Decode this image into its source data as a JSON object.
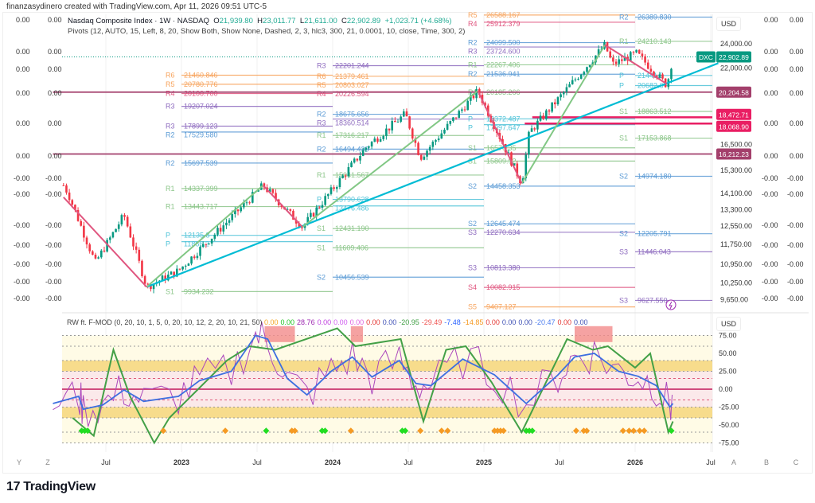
{
  "credit": "finanzasydinero created with TradingView.com, Apr 11, 2026 09:51 UTC-5",
  "brand": {
    "logo": "17",
    "name": "TradingView"
  },
  "main_legend": {
    "title": "Nasdaq Composite Index · 1W · NASDAQ",
    "o_label": "O",
    "o": "21,939.80",
    "h_label": "H",
    "h": "23,011.77",
    "l_label": "L",
    "l": "21,611.00",
    "c_label": "C",
    "c": "22,902.89",
    "change": "+1,023.71 (+4.68%)"
  },
  "pivot_legend": "Pivots (12, AUTO, 15, Left, 8, 20, Show Both, Show None, Dashed, 2, 3, hlc3, 300, 21, 0.0001, 10, close, Time, 300, 2)",
  "osc_legend": {
    "title": "RW ft. F-MOD (0, 20, 10, 1, 5, 0, 20, 10, 12, 2, 20, 10, 21, 50)",
    "values": [
      {
        "v": "0.00",
        "color": "#f5a623"
      },
      {
        "v": "0.00",
        "color": "#22c322"
      },
      {
        "v": "28.76",
        "color": "#9c27b0"
      },
      {
        "v": "0.00",
        "color": "#c040e0"
      },
      {
        "v": "0.00",
        "color": "#d05ef0"
      },
      {
        "v": "0.00",
        "color": "#e060e0"
      },
      {
        "v": "0.00",
        "color": "#e53935"
      },
      {
        "v": "0.00",
        "color": "#3f51b5"
      },
      {
        "v": "-20.95",
        "color": "#43a047"
      },
      {
        "v": "-29.49",
        "color": "#ef5350"
      },
      {
        "v": "-7.48",
        "color": "#2962ff"
      },
      {
        "v": "-14.85",
        "color": "#f59a23"
      },
      {
        "v": "0.00",
        "color": "#e53935"
      },
      {
        "v": "0.00",
        "color": "#3f51b5"
      },
      {
        "v": "0.00",
        "color": "#3f51b5"
      },
      {
        "v": "-20.47",
        "color": "#4f7ff0"
      },
      {
        "v": "0.00",
        "color": "#e53935"
      },
      {
        "v": "0.00",
        "color": "#3f51b5"
      }
    ]
  },
  "price_scale": {
    "currency": "USD",
    "ticks": [
      "24,000.00",
      "22,000.00",
      "16,500.00",
      "15,300.00",
      "14,100.00",
      "13,300.00",
      "12,550.00",
      "11,750.00",
      "10,950.00",
      "10,250.00",
      "9,650.00"
    ],
    "tick_values": [
      24000,
      22000,
      16500,
      15300,
      14100,
      13300,
      12550,
      11750,
      10950,
      10250,
      9650
    ],
    "symbol_badge": "DXC",
    "last_price": {
      "label": "22,902.89",
      "value": 22902.89,
      "color": "#089981"
    },
    "level_badges": [
      {
        "label": "20,204.58",
        "value": 20204.58,
        "color": "#a33f6b"
      },
      {
        "label": "18,472.71",
        "value": 18472.71,
        "color": "#e91e63"
      },
      {
        "label": "18,068.90",
        "value": 18068.9,
        "color": "#e91e63"
      },
      {
        "label": "16,212.23",
        "value": 16212.23,
        "color": "#a33f6b"
      }
    ]
  },
  "aux_scales": {
    "right_col1": [
      "0.00",
      "0.00",
      "0.00",
      "0.00",
      "0.00",
      "0.00",
      "-0.00",
      "-0.00",
      "-0.00",
      "-0.00",
      "-0.00",
      "-0.00",
      "-0.00"
    ],
    "right_col2": [
      "0.00",
      "0.00",
      "0.00",
      "0.00",
      "0.00",
      "0.00",
      "-0.00",
      "-0.00",
      "-0.00",
      "-0.00",
      "-0.00",
      "-0.00",
      "-0.00"
    ],
    "left_col1": [
      "0.00",
      "0.00",
      "0.00",
      "0.00",
      "0.00",
      "0.00",
      "-0.00",
      "-0.00",
      "-0.00",
      "-0.00",
      "-0.00",
      "-0.00",
      "-0.00"
    ],
    "left_col2": [
      "0.00",
      "0.00",
      "0.00",
      "0.00",
      "0.00",
      "0.00",
      "-0.00",
      "-0.00",
      "-0.00",
      "-0.00",
      "-0.00",
      "-0.00",
      "-0.00"
    ]
  },
  "osc_scale": {
    "currency": "USD",
    "ticks": [
      "75.00",
      "50.00",
      "25.00",
      "0.00",
      "-25.00",
      "-50.00",
      "-75.00"
    ],
    "tick_values": [
      75,
      50,
      25,
      0,
      -25,
      -50,
      -75
    ]
  },
  "time_axis": {
    "labels": [
      {
        "t": 2022.5,
        "label": "Jul"
      },
      {
        "t": 2023.0,
        "label": "2023"
      },
      {
        "t": 2023.5,
        "label": "Jul"
      },
      {
        "t": 2024.0,
        "label": "2024"
      },
      {
        "t": 2024.5,
        "label": "Jul"
      },
      {
        "t": 2025.0,
        "label": "2025"
      },
      {
        "t": 2025.5,
        "label": "Jul"
      },
      {
        "t": 2026.0,
        "label": "2026"
      },
      {
        "t": 2026.5,
        "label": "Jul"
      }
    ],
    "left_buttons": [
      "Y",
      "Z"
    ],
    "right_buttons": [
      "A",
      "B",
      "C"
    ]
  },
  "chart_data": {
    "type": "candlestick",
    "title": "Nasdaq Composite Index · 1W · NASDAQ",
    "scale": "log",
    "ylim": [
      9400,
      27000
    ],
    "xlim": [
      2022.15,
      2026.55
    ],
    "swings": [
      [
        2022.22,
        14500
      ],
      [
        2022.25,
        14100
      ],
      [
        2022.43,
        11000
      ],
      [
        2022.62,
        13050
      ],
      [
        2022.77,
        10100
      ],
      [
        2022.98,
        10700
      ],
      [
        2023.54,
        14500
      ],
      [
        2023.8,
        12500
      ],
      [
        2024.22,
        16600
      ],
      [
        2024.48,
        18700
      ],
      [
        2024.58,
        16000
      ],
      [
        2024.96,
        20300
      ],
      [
        2025.25,
        14600
      ],
      [
        2025.3,
        17500
      ],
      [
        2025.8,
        23900
      ],
      [
        2025.85,
        22300
      ],
      [
        2026.01,
        23200
      ],
      [
        2026.21,
        20700
      ],
      [
        2026.25,
        22902.89
      ]
    ],
    "trendline": [
      [
        2022.77,
        10100
      ],
      [
        2026.55,
        22400
      ]
    ],
    "zigzag_up": [
      [
        [
          2022.77,
          10100
        ],
        [
          2023.54,
          14500
        ]
      ],
      [
        [
          2023.8,
          12500
        ],
        [
          2024.96,
          20300
        ]
      ],
      [
        [
          2025.25,
          14600
        ],
        [
          2025.8,
          23900
        ]
      ]
    ],
    "zigzag_down": [
      [
        [
          2022.22,
          13900
        ],
        [
          2022.77,
          10100
        ]
      ],
      [
        [
          2023.54,
          14500
        ],
        [
          2023.8,
          12500
        ]
      ],
      [
        [
          2024.96,
          20300
        ],
        [
          2025.25,
          14600
        ]
      ],
      [
        [
          2025.8,
          23900
        ],
        [
          2026.21,
          20800
        ]
      ]
    ],
    "level_lines": [
      {
        "value": 20204.58,
        "from": 2022.15,
        "color": "#a33f6b"
      },
      {
        "value": 18472.71,
        "from": 2025.32,
        "color": "#e91e63"
      },
      {
        "value": 18068.9,
        "from": 2025.27,
        "color": "#e91e63"
      },
      {
        "value": 16212.23,
        "from": 2022.15,
        "color": "#a33f6b"
      }
    ],
    "pivot_segments": [
      {
        "from": 2023.0,
        "to": 2024.0,
        "levels": [
          {
            "k": "R6",
            "v": "21460.846"
          },
          {
            "k": "R5",
            "v": "20780.776"
          },
          {
            "k": "R4",
            "v": "20100.700"
          },
          {
            "k": "R3",
            "v": "19207.024"
          },
          {
            "k": "R3",
            "v": "17899.123"
          },
          {
            "k": "R2",
            "v": "17529.580"
          },
          {
            "k": "R2",
            "v": "15697.539"
          },
          {
            "k": "R1",
            "v": "14337.399"
          },
          {
            "k": "R1",
            "v": "13443.717"
          },
          {
            "k": "P",
            "v": "12135.8"
          },
          {
            "k": "P",
            "v": "11866.2"
          },
          {
            "k": "S1",
            "v": "9934.232"
          }
        ]
      },
      {
        "from": 2024.0,
        "to": 2025.0,
        "levels": [
          {
            "k": "R3",
            "v": "22201.244"
          },
          {
            "k": "R6",
            "v": "21379.461"
          },
          {
            "k": "R5",
            "v": "20803.027"
          },
          {
            "k": "R4",
            "v": "20226.594"
          },
          {
            "k": "R2",
            "v": "18675.656"
          },
          {
            "k": "R3",
            "v": "18360.514"
          },
          {
            "k": "R1",
            "v": "17316.217"
          },
          {
            "k": "R2",
            "v": "16494.433"
          },
          {
            "k": "R1",
            "v": "15041.567"
          },
          {
            "k": "P",
            "v": "13790.628"
          },
          {
            "k": "P",
            "v": "13476.486"
          },
          {
            "k": "S1",
            "v": "12431.190"
          },
          {
            "k": "S1",
            "v": "11609.406"
          },
          {
            "k": "S2",
            "v": "10456.539"
          }
        ]
      },
      {
        "from": 2025.0,
        "to": 2026.0,
        "levels": [
          {
            "k": "R5",
            "v": "26588.167"
          },
          {
            "k": "R4",
            "v": "25912.379"
          },
          {
            "k": "R2",
            "v": "24099.500"
          },
          {
            "k": "R3",
            "v": "23724.600"
          },
          {
            "k": "R1",
            "v": "22267.406"
          },
          {
            "k": "R2",
            "v": "21536.941"
          },
          {
            "k": "R1",
            "v": "20185.266"
          },
          {
            "k": "P",
            "v": "18372.487"
          },
          {
            "k": "P",
            "v": "17997.647"
          },
          {
            "k": "S1",
            "v": "16570.35"
          },
          {
            "k": "S1",
            "v": "15809.92"
          },
          {
            "k": "S2",
            "v": "14458.353"
          },
          {
            "k": "S2",
            "v": "12645.474"
          },
          {
            "k": "S3",
            "v": "12270.634"
          },
          {
            "k": "S3",
            "v": "10813.380"
          },
          {
            "k": "S4",
            "v": "10082.915"
          },
          {
            "k": "S5",
            "v": "9407.127"
          }
        ]
      },
      {
        "from": 2026.0,
        "to": 2026.52,
        "levels": [
          {
            "k": "R2",
            "v": "26389.830"
          },
          {
            "k": "R1",
            "v": "24210.143"
          },
          {
            "k": "P",
            "v": "21441.5"
          },
          {
            "k": "P",
            "v": "20682.6"
          },
          {
            "k": "S1",
            "v": "18863.512"
          },
          {
            "k": "S1",
            "v": "17153.868"
          },
          {
            "k": "S2",
            "v": "14974.180"
          },
          {
            "k": "S2",
            "v": "12205.791"
          },
          {
            "k": "S3",
            "v": "11446.043"
          },
          {
            "k": "S3",
            "v": "9627.550"
          }
        ]
      }
    ],
    "pivot_colors": {
      "R6": "#f7a35c",
      "R5": "#f7a35c",
      "R4": "#e0557f",
      "R3": "#8e6bbf",
      "R2": "#5b9bd5",
      "R1": "#8cc68a",
      "P": "#4fc3d8",
      "S1": "#8cc68a",
      "S2": "#5b9bd5",
      "S3": "#8e6bbf",
      "S4": "#e0557f",
      "S5": "#f7a35c"
    },
    "oscillator": {
      "ylim": [
        -80,
        90
      ],
      "bands": {
        "outer": [
          -75,
          75
        ],
        "upper_zone": [
          25,
          40
        ],
        "lower_zone": [
          -40,
          -25
        ]
      },
      "main_line": [
        [
          2022.15,
          -20
        ],
        [
          2022.32,
          -10
        ],
        [
          2022.35,
          -28
        ],
        [
          2022.48,
          -22
        ],
        [
          2022.62,
          -1
        ],
        [
          2022.75,
          -17
        ],
        [
          2022.98,
          -10
        ],
        [
          2023.12,
          12
        ],
        [
          2023.33,
          25
        ],
        [
          2023.49,
          75
        ],
        [
          2023.57,
          70
        ],
        [
          2023.7,
          15
        ],
        [
          2023.83,
          -8
        ],
        [
          2023.99,
          25
        ],
        [
          2024.13,
          45
        ],
        [
          2024.26,
          17
        ],
        [
          2024.44,
          40
        ],
        [
          2024.55,
          8
        ],
        [
          2024.65,
          5
        ],
        [
          2024.86,
          42
        ],
        [
          2025.07,
          20
        ],
        [
          2025.28,
          -20
        ],
        [
          2025.49,
          20
        ],
        [
          2025.6,
          45
        ],
        [
          2025.73,
          50
        ],
        [
          2025.89,
          25
        ],
        [
          2026.02,
          18
        ],
        [
          2026.14,
          5
        ],
        [
          2026.23,
          -25
        ],
        [
          2026.25,
          -20
        ]
      ],
      "green_line": [
        [
          2022.28,
          -40
        ],
        [
          2022.42,
          -65
        ],
        [
          2022.55,
          55
        ],
        [
          2022.66,
          -10
        ],
        [
          2022.82,
          -75
        ],
        [
          2022.92,
          -40
        ],
        [
          2023.3,
          40
        ],
        [
          2023.45,
          60
        ],
        [
          2023.62,
          55
        ],
        [
          2024.03,
          85
        ],
        [
          2024.15,
          60
        ],
        [
          2024.45,
          70
        ],
        [
          2024.6,
          -45
        ],
        [
          2024.75,
          55
        ],
        [
          2024.88,
          60
        ],
        [
          2025.05,
          10
        ],
        [
          2025.25,
          -60
        ],
        [
          2025.55,
          70
        ],
        [
          2025.72,
          55
        ],
        [
          2025.82,
          60
        ],
        [
          2026.0,
          30
        ],
        [
          2026.1,
          50
        ],
        [
          2026.22,
          -60
        ],
        [
          2026.25,
          -45
        ]
      ],
      "orange_markers": [
        2022.88,
        2023.29,
        2023.73,
        2023.75,
        2024.12,
        2024.58,
        2024.72,
        2024.76,
        2025.07,
        2025.09,
        2025.11,
        2025.13,
        2025.61,
        2025.66,
        2025.68,
        2025.92,
        2025.96,
        2025.99,
        2026.03,
        2026.06
      ],
      "green_markers": [
        2022.34,
        2022.36,
        2022.38,
        2023.56,
        2023.93,
        2023.95,
        2024.46,
        2024.48,
        2025.28,
        2025.3,
        2025.32,
        2026.24
      ],
      "red_zones": [
        [
          2023.55,
          2023.75
        ],
        [
          2024.12,
          2024.2
        ],
        [
          2025.6,
          2025.85
        ]
      ]
    }
  }
}
